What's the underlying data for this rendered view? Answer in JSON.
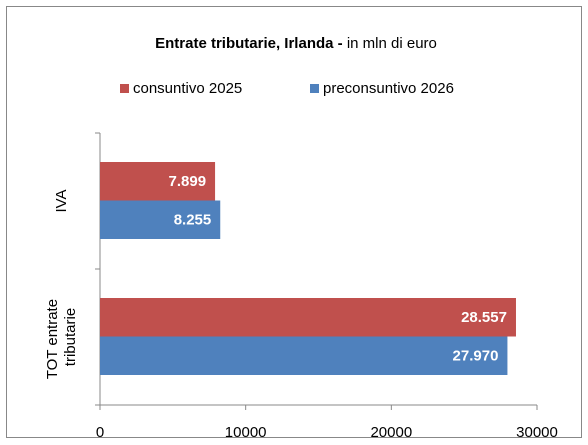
{
  "chart_data": {
    "type": "hbar",
    "title": "Entrate tributarie, Irlanda -",
    "title_note": "in mln di euro",
    "categories": [
      "IVA",
      "TOT entrate tributarie"
    ],
    "series": [
      {
        "name": "consuntivo 2025",
        "color": "#c0504d",
        "values": [
          7899,
          28557
        ],
        "value_labels": [
          "7.899",
          "28.557"
        ]
      },
      {
        "name": "preconsuntivo 2026",
        "color": "#4f81bd",
        "values": [
          8255,
          27970
        ],
        "value_labels": [
          "8.255",
          "27.970"
        ]
      }
    ],
    "xlim": [
      0,
      30000
    ],
    "xticks": [
      0,
      10000,
      20000,
      30000
    ],
    "grid": false,
    "legend": "top"
  }
}
